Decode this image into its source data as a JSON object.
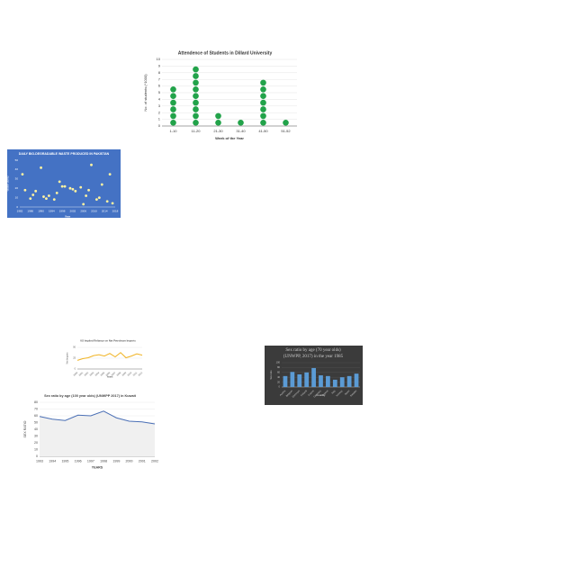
{
  "chart_data": [
    {
      "type": "dot",
      "title": "Attendence of Students in Dillard University",
      "x_label": "Week of the Year",
      "y_label": "No. of students (*1000)",
      "categories": [
        "1-10",
        "11-20",
        "21-30",
        "31-40",
        "41-50",
        "51-52"
      ],
      "values": [
        6,
        9,
        2,
        1,
        7,
        1
      ],
      "color": "#22a34a",
      "ylim": [
        0,
        10
      ],
      "yticks": [
        0,
        1,
        2,
        3,
        4,
        5,
        6,
        7,
        8,
        9,
        10
      ],
      "grid": true
    },
    {
      "type": "scatter",
      "title": "DAILY BIO-DEGRADABLE WASTE PRODUCED IN PAKISTAN",
      "x_label": "Year",
      "y_label": "Waste (tons)",
      "x": [
        1983,
        1984,
        1986,
        1987,
        1988,
        1990,
        1991,
        1992,
        1993,
        1995,
        1996,
        1997,
        1998,
        1999,
        2001,
        2002,
        2003,
        2005,
        2006,
        2007,
        2008,
        2009,
        2011,
        2012,
        2013,
        2015,
        2016,
        2017
      ],
      "values": [
        35,
        18,
        9,
        13,
        17,
        42,
        11,
        9,
        12,
        8,
        15,
        27,
        22,
        22,
        20,
        19,
        17,
        21,
        3,
        12,
        18,
        45,
        8,
        10,
        24,
        6,
        35,
        4
      ],
      "color": "#fff3a0",
      "xlim": [
        1982,
        2018
      ],
      "xticks": [
        1982,
        1986,
        1990,
        1994,
        1998,
        2002,
        2006,
        2010,
        2014,
        2018
      ],
      "ylim": [
        0,
        50
      ],
      "yticks": [
        0,
        10,
        20,
        30,
        40,
        50
      ],
      "grid": false
    },
    {
      "type": "line",
      "title": "US Implied Reliance on Net Petroleum Imports",
      "x_label": "Years",
      "y_label": "Net Imports",
      "categories": [
        "2000",
        "2001",
        "2002",
        "2003",
        "2004",
        "2005",
        "2006",
        "2007",
        "2008",
        "2009",
        "2010",
        "2011",
        "2012"
      ],
      "series": [
        {
          "name": "Net Imports",
          "color": "#f0b323",
          "values": [
            20,
            24,
            26,
            31,
            33,
            30,
            36,
            28,
            38,
            26,
            30,
            35,
            32
          ]
        }
      ],
      "ylim": [
        0,
        50
      ],
      "yticks": [
        0,
        25,
        50
      ],
      "grid": true
    },
    {
      "type": "bar",
      "title": [
        "Sex ratio by age (70 year olds)",
        "(UNWPP, 2017) in the year 1985"
      ],
      "x_label": "Country",
      "y_label": "Sex ratio",
      "categories": [
        "Austria",
        "Belgium",
        "Denmark",
        "Finland",
        "France",
        "Germany",
        "Greece",
        "Italy",
        "Norway",
        "Spain",
        "Sweden"
      ],
      "values": [
        45,
        62,
        52,
        60,
        78,
        48,
        45,
        30,
        40,
        45,
        55
      ],
      "color": "#5b9bd5",
      "ylim": [
        0,
        100
      ],
      "yticks": [
        0,
        20,
        40,
        60,
        80,
        100
      ],
      "grid": true
    },
    {
      "type": "line",
      "title": "Sex ratio by age (100 year olds) (UNWPP 2017) in Kuwait",
      "x_label": "YEARS",
      "y_label": "SEX RATIO",
      "categories": [
        "1993",
        "1994",
        "1995",
        "1996",
        "1997",
        "1998",
        "1999",
        "2000",
        "2001",
        "2002"
      ],
      "series": [
        {
          "name": "Kuwait",
          "color": "#4a6fb5",
          "values": [
            59,
            55,
            53,
            61,
            60,
            67,
            57,
            52,
            51,
            48
          ]
        }
      ],
      "ylim": [
        0,
        80
      ],
      "yticks": [
        0,
        10,
        20,
        30,
        40,
        50,
        60,
        70,
        80
      ],
      "grid": true
    }
  ]
}
